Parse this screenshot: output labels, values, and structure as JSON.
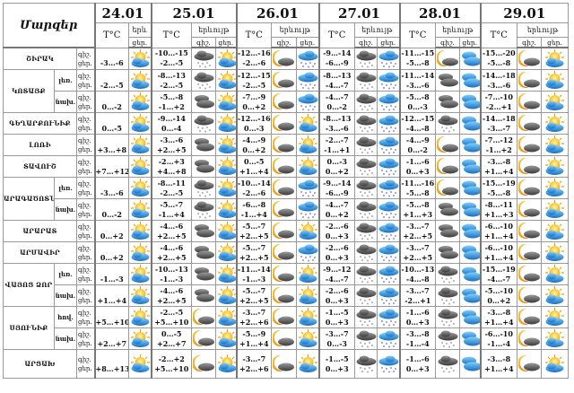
{
  "header": {
    "title": "Մարզեր",
    "dates": [
      "24.01",
      "25.01",
      "26.01",
      "27.01",
      "28.01",
      "29.01"
    ],
    "temp_label": "T°C",
    "phenomenon_label": "երևույթ",
    "phenomenon_label_short": "երև",
    "night_label": "գիշ.",
    "day_label": "ցեր."
  },
  "regions": [
    {
      "name": "ՇԻՐԱԿ",
      "subs": [
        {
          "label": "",
          "days": [
            {
              "day": "-3…-6",
              "day_icon": "sun-cloud"
            },
            {
              "night": "-10…-15",
              "day": "-2…-5",
              "night_icon": "dark-snow",
              "day_icon": "sun-cloud"
            },
            {
              "night": "-12…-16",
              "day": "-2…-6",
              "night_icon": "moon-cloud",
              "day_icon": "blue-snow"
            },
            {
              "night": "-9…-14",
              "day": "-6…-9",
              "night_icon": "dark-snow",
              "day_icon": "blue-snow"
            },
            {
              "night": "-11…-15",
              "day": "-5…-8",
              "night_icon": "moon-cloud",
              "day_icon": "blue-clouds"
            },
            {
              "night": "-15…-20",
              "day": "-5…-8",
              "night_icon": "moon-cloud",
              "day_icon": "sun-cloud"
            }
          ]
        }
      ]
    },
    {
      "name": "ԿՈՏԱՅՔ",
      "subs": [
        {
          "label": "լեռ.",
          "days": [
            {
              "day": "-2…-5",
              "day_icon": "sun-cloud"
            },
            {
              "night": "-8…-13",
              "day": "-2…-5",
              "night_icon": "dark-snow",
              "day_icon": "sun-cloud"
            },
            {
              "night": "-12…-15",
              "day": "-2…-5",
              "night_icon": "moon-cloud",
              "day_icon": "blue-snow"
            },
            {
              "night": "-8…-13",
              "day": "-4…-7",
              "night_icon": "dark-snow",
              "day_icon": "blue-snow"
            },
            {
              "night": "-11…-14",
              "day": "-3…-6",
              "night_icon": "dark-clouds",
              "day_icon": "blue-clouds"
            },
            {
              "night": "-14…-18",
              "day": "-3…-6",
              "night_icon": "moon-cloud",
              "day_icon": "sun-cloud"
            }
          ]
        },
        {
          "label": "նախ.",
          "days": [
            {
              "day": "0…-2",
              "day_icon": "sun-cloud"
            },
            {
              "night": "-5…-8",
              "day": "-1…+2",
              "night_icon": "dark-clouds",
              "day_icon": "sun-cloud"
            },
            {
              "night": "-7…-9",
              "day": "0…+2",
              "night_icon": "moon-cloud",
              "day_icon": "blue-snow"
            },
            {
              "night": "-4…-7",
              "day": "0…-2",
              "night_icon": "dark-snow",
              "day_icon": "blue-snow"
            },
            {
              "night": "-5…-8",
              "day": "0…-3",
              "night_icon": "dark-clouds",
              "day_icon": "blue-clouds"
            },
            {
              "night": "-7…-10",
              "day": "-2…+1",
              "night_icon": "moon-cloud",
              "day_icon": "sun-cloud"
            }
          ]
        }
      ]
    },
    {
      "name": "ԳԵՂԱՐՔՈՒՆԻՔ",
      "subs": [
        {
          "label": "",
          "days": [
            {
              "day": "0…-5",
              "day_icon": "sun-cloud"
            },
            {
              "night": "-9…-14",
              "day": "0…-4",
              "night_icon": "dark-snow",
              "day_icon": "sun-cloud"
            },
            {
              "night": "-12…-16",
              "day": "0…-3",
              "night_icon": "moon-cloud",
              "day_icon": "sun-cloud"
            },
            {
              "night": "-8…-13",
              "day": "-3…-6",
              "night_icon": "dark-snow",
              "day_icon": "blue-snow"
            },
            {
              "night": "-12…-15",
              "day": "-4…-8",
              "night_icon": "dark-snow",
              "day_icon": "blue-clouds"
            },
            {
              "night": "-14…-18",
              "day": "-3…-7",
              "night_icon": "moon-cloud",
              "day_icon": "sun-cloud"
            }
          ]
        }
      ]
    },
    {
      "name": "ԼՈՌԻ",
      "subs": [
        {
          "label": "",
          "days": [
            {
              "day": "+3…+8",
              "day_icon": "sun-cloud"
            },
            {
              "night": "-3…-6",
              "day": "+2…+5",
              "night_icon": "dark-clouds",
              "day_icon": "sun-cloud"
            },
            {
              "night": "-4…-9",
              "day": "0…+2",
              "night_icon": "moon-cloud",
              "day_icon": "sun-cloud"
            },
            {
              "night": "-2…-7",
              "day": "-1…+1",
              "night_icon": "dark-snow",
              "day_icon": "blue-snow"
            },
            {
              "night": "-4…-9",
              "day": "0…-2",
              "night_icon": "moon-cloud",
              "day_icon": "blue-clouds"
            },
            {
              "night": "-7…-12",
              "day": "-1…+2",
              "night_icon": "moon-cloud",
              "day_icon": "sun-cloud"
            }
          ]
        }
      ]
    },
    {
      "name": "ՏԱՎՈՒՇ",
      "subs": [
        {
          "label": "",
          "days": [
            {
              "day": "+7…+12",
              "day_icon": "sun-cloud"
            },
            {
              "night": "-2…+3",
              "day": "+4…+8",
              "night_icon": "dark-clouds",
              "day_icon": "sun-cloud"
            },
            {
              "night": "0…-5",
              "day": "+1…+4",
              "night_icon": "moon-cloud",
              "day_icon": "sun-cloud"
            },
            {
              "night": "0…-3",
              "day": "0…+2",
              "night_icon": "dark-snow",
              "day_icon": "blue-snow"
            },
            {
              "night": "-1…-6",
              "day": "0…+3",
              "night_icon": "moon-cloud",
              "day_icon": "blue-clouds"
            },
            {
              "night": "-3…-8",
              "day": "+1…+4",
              "night_icon": "moon-cloud",
              "day_icon": "sun-cloud"
            }
          ]
        }
      ]
    },
    {
      "name": "ԱՐԱԳԱԾՈՏՆ",
      "subs": [
        {
          "label": "լեռ.",
          "days": [
            {
              "day": "-3…-6",
              "day_icon": "sun-cloud"
            },
            {
              "night": "-8…-11",
              "day": "-2…-5",
              "night_icon": "dark-snow",
              "day_icon": "sun-cloud"
            },
            {
              "night": "-10…-14",
              "day": "-2…-6",
              "night_icon": "moon-cloud",
              "day_icon": "blue-snow"
            },
            {
              "night": "-9…-14",
              "day": "-6…-9",
              "night_icon": "dark-snow",
              "day_icon": "blue-snow"
            },
            {
              "night": "-11…-16",
              "day": "-5…-8",
              "night_icon": "moon-cloud",
              "day_icon": "blue-clouds"
            },
            {
              "night": "-15…-19",
              "day": "-5…-8",
              "night_icon": "moon-cloud",
              "day_icon": "sun-cloud"
            }
          ]
        },
        {
          "label": "նախ.",
          "days": [
            {
              "day": "0…-2",
              "day_icon": "sun-cloud"
            },
            {
              "night": "-5…-7",
              "day": "-1…+4",
              "night_icon": "dark-snow",
              "day_icon": "sun-cloud"
            },
            {
              "night": "-6…-8",
              "day": "-1…+4",
              "night_icon": "moon-cloud",
              "day_icon": "blue-snow"
            },
            {
              "night": "-4…-7",
              "day": "0…+2",
              "night_icon": "dark-snow",
              "day_icon": "blue-snow"
            },
            {
              "night": "-5…-8",
              "day": "+1…+3",
              "night_icon": "dark-clouds",
              "day_icon": "blue-clouds"
            },
            {
              "night": "-8…-11",
              "day": "+1…+3",
              "night_icon": "moon-cloud",
              "day_icon": "sun-cloud"
            }
          ]
        }
      ]
    },
    {
      "name": "ԱՐԱՐԱՏ",
      "subs": [
        {
          "label": "",
          "days": [
            {
              "day": "0…+2",
              "day_icon": "sun-cloud"
            },
            {
              "night": "-4…-6",
              "day": "+2…+5",
              "night_icon": "dark-clouds",
              "day_icon": "sun-cloud"
            },
            {
              "night": "-5…-7",
              "day": "+2…+5",
              "night_icon": "moon-cloud",
              "day_icon": "sun-cloud"
            },
            {
              "night": "-2…-6",
              "day": "0…+3",
              "night_icon": "dark-snow",
              "day_icon": "blue-snow"
            },
            {
              "night": "-3…-7",
              "day": "+2…+5",
              "night_icon": "dark-clouds",
              "day_icon": "blue-clouds"
            },
            {
              "night": "-6…-10",
              "day": "+1…+4",
              "night_icon": "moon-cloud",
              "day_icon": "sun-cloud"
            }
          ]
        }
      ]
    },
    {
      "name": "ԱՐՄԱՎԻՐ",
      "subs": [
        {
          "label": "",
          "days": [
            {
              "day": "0…+2",
              "day_icon": "sun-cloud"
            },
            {
              "night": "-4…-6",
              "day": "+2…+5",
              "night_icon": "dark-clouds",
              "day_icon": "sun-cloud"
            },
            {
              "night": "-5…-7",
              "day": "+2…+5",
              "night_icon": "moon-cloud",
              "day_icon": "blue-snow"
            },
            {
              "night": "-2…-6",
              "day": "0…+3",
              "night_icon": "dark-snow",
              "day_icon": "blue-snow"
            },
            {
              "night": "-3…-7",
              "day": "+2…+5",
              "night_icon": "dark-clouds",
              "day_icon": "blue-clouds"
            },
            {
              "night": "-6…-10",
              "day": "+1…+4",
              "night_icon": "moon-cloud",
              "day_icon": "sun-cloud"
            }
          ]
        }
      ]
    },
    {
      "name": "ՎԱՅՈՑ ՁՈՐ",
      "subs": [
        {
          "label": "լեռ.",
          "days": [
            {
              "day": "-1…-3",
              "day_icon": "sun-cloud"
            },
            {
              "night": "-10…-13",
              "day": "-1…-3",
              "night_icon": "dark-clouds",
              "day_icon": "sun-cloud"
            },
            {
              "night": "-11…-14",
              "day": "-1…-3",
              "night_icon": "moon-cloud",
              "day_icon": "sun-cloud"
            },
            {
              "night": "-9…-12",
              "day": "-4…-7",
              "night_icon": "dark-snow",
              "day_icon": "blue-snow"
            },
            {
              "night": "-10…-13",
              "day": "-4…-8",
              "night_icon": "dark-snow",
              "day_icon": "blue-clouds"
            },
            {
              "night": "-15…-19",
              "day": "-4…-7",
              "night_icon": "moon-cloud",
              "day_icon": "sun-cloud"
            }
          ]
        },
        {
          "label": "նախ.",
          "days": [
            {
              "day": "+1…+4",
              "day_icon": "sun-cloud"
            },
            {
              "night": "-4…-6",
              "day": "+2…+5",
              "night_icon": "dark-clouds",
              "day_icon": "sun-cloud"
            },
            {
              "night": "-5…-7",
              "day": "+2…+5",
              "night_icon": "moon-cloud",
              "day_icon": "sun-cloud"
            },
            {
              "night": "-2…-6",
              "day": "0…+3",
              "night_icon": "dark-snow",
              "day_icon": "blue-snow"
            },
            {
              "night": "-3…-7",
              "day": "-2…+1",
              "night_icon": "dark-snow",
              "day_icon": "blue-clouds"
            },
            {
              "night": "-5…-10",
              "day": "0…+2",
              "night_icon": "moon-cloud",
              "day_icon": "sun-cloud"
            }
          ]
        }
      ]
    },
    {
      "name": "ՍՅՈՒՆԻՔ",
      "subs": [
        {
          "label": "հով.",
          "days": [
            {
              "day": "+5…+10",
              "day_icon": "sun-cloud"
            },
            {
              "night": "-2…-5",
              "day": "+5…+10",
              "night_icon": "moon-cloud",
              "day_icon": "sun-cloud"
            },
            {
              "night": "-3…-7",
              "day": "+2…+6",
              "night_icon": "moon-cloud",
              "day_icon": "sun-cloud"
            },
            {
              "night": "-1…-5",
              "day": "0…+3",
              "night_icon": "dark-snow",
              "day_icon": "blue-snow"
            },
            {
              "night": "-1…-6",
              "day": "0…+3",
              "night_icon": "dark-snow",
              "day_icon": "blue-clouds"
            },
            {
              "night": "-3…-8",
              "day": "+1…+4",
              "night_icon": "moon-cloud",
              "day_icon": "sun-cloud"
            }
          ]
        },
        {
          "label": "նախ.",
          "days": [
            {
              "day": "+2…+7",
              "day_icon": "sun-cloud"
            },
            {
              "night": "0…-5",
              "day": "+2…+7",
              "night_icon": "moon-cloud",
              "day_icon": "sun-cloud"
            },
            {
              "night": "-5…-9",
              "day": "+1…+4",
              "night_icon": "moon-cloud",
              "day_icon": "sun-cloud"
            },
            {
              "night": "-3…-7",
              "day": "0…-3",
              "night_icon": "dark-snow",
              "day_icon": "blue-snow"
            },
            {
              "night": "-3…-8",
              "day": "-1…-4",
              "night_icon": "dark-snow",
              "day_icon": "blue-clouds"
            },
            {
              "night": "-6…-10",
              "day": "-1…-4",
              "night_icon": "moon-cloud",
              "day_icon": "sun-cloud"
            }
          ]
        }
      ]
    },
    {
      "name": "ԱՐՑԱԽ",
      "subs": [
        {
          "label": "",
          "days": [
            {
              "day": "+8…+13",
              "day_icon": "sun-cloud"
            },
            {
              "night": "-2…+2",
              "day": "+5…+10",
              "night_icon": "moon-cloud",
              "day_icon": "sun-cloud"
            },
            {
              "night": "-3…-7",
              "day": "+2…+6",
              "night_icon": "moon-cloud",
              "day_icon": "sun-cloud"
            },
            {
              "night": "-1…-5",
              "day": "0…+3",
              "night_icon": "dark-snow",
              "day_icon": "blue-snow"
            },
            {
              "night": "-1…-6",
              "day": "0…+3",
              "night_icon": "dark-snow",
              "day_icon": "blue-clouds"
            },
            {
              "night": "-3…-8",
              "day": "+1…+4",
              "night_icon": "moon-cloud",
              "day_icon": "sun-cloud"
            }
          ]
        }
      ]
    }
  ]
}
